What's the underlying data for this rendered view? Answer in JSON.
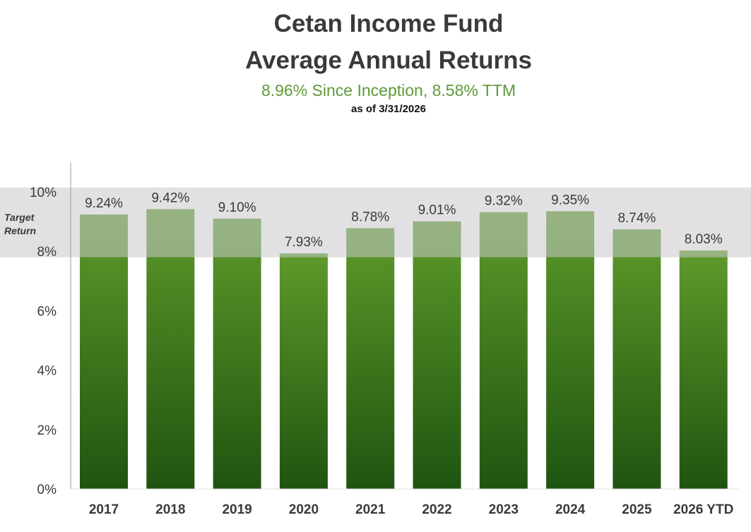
{
  "header": {
    "title_line1": "Cetan Income Fund",
    "title_line2": "Average Annual Returns",
    "subtitle": "8.96% Since Inception, 8.58% TTM",
    "as_of": "as of 3/31/2026"
  },
  "chart_data": {
    "type": "bar",
    "categories": [
      "2017",
      "2018",
      "2019",
      "2020",
      "2021",
      "2022",
      "2023",
      "2024",
      "2025",
      "2026 YTD"
    ],
    "values": [
      9.24,
      9.42,
      9.1,
      7.93,
      8.78,
      9.01,
      9.32,
      9.35,
      8.74,
      8.03
    ],
    "data_labels": [
      "9.24%",
      "9.42%",
      "9.10%",
      "7.93%",
      "8.78%",
      "9.01%",
      "9.32%",
      "9.35%",
      "8.74%",
      "8.03%"
    ],
    "ylim": [
      0,
      11
    ],
    "yticks": [
      0,
      2,
      4,
      6,
      8,
      10
    ],
    "ytick_labels": [
      "0%",
      "2%",
      "4%",
      "6%",
      "8%",
      "10%"
    ],
    "target_band": {
      "label": "Target Return",
      "range": [
        7.8,
        10.15
      ],
      "color": "#c8c9cc"
    },
    "bar_color_top": "#5e9a2a",
    "bar_color_bottom": "#1f5410",
    "grid": false
  }
}
